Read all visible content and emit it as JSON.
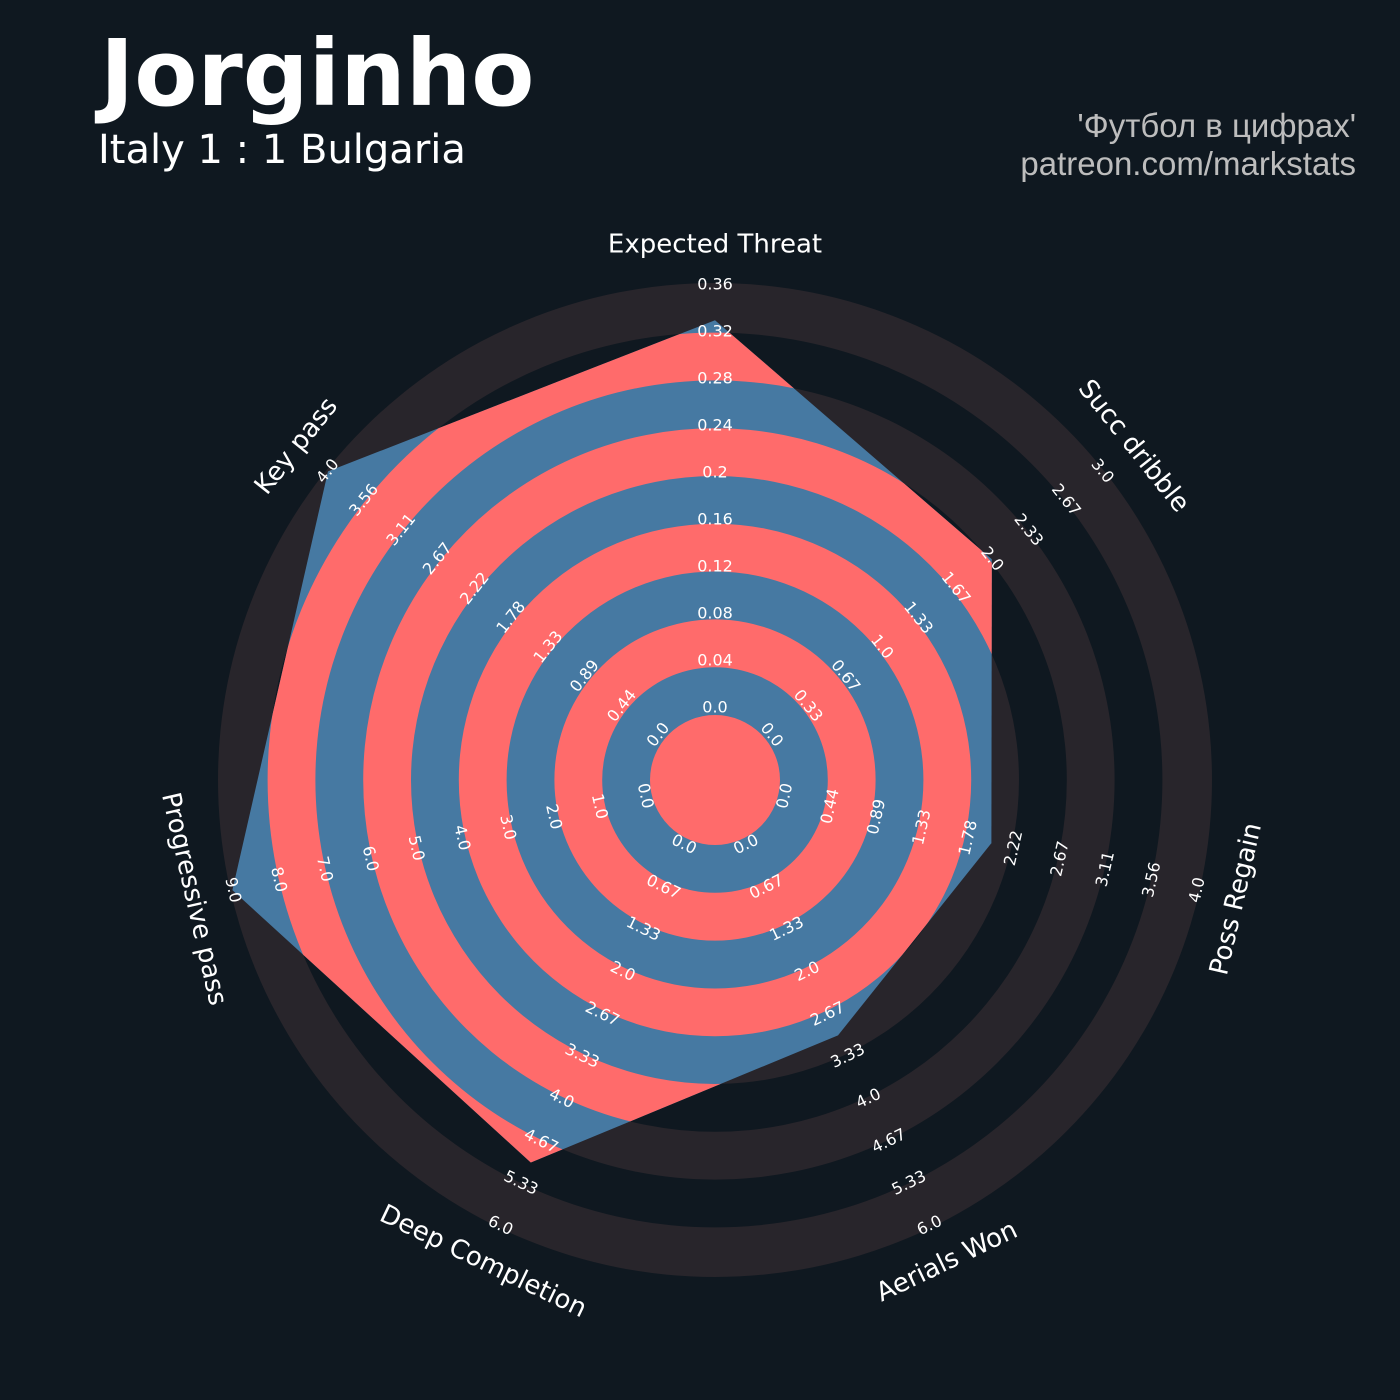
{
  "chart_data": {
    "type": "radar",
    "title": "Jorginho",
    "subtitle": "Italy 1 : 1 Bulgaria",
    "credits": [
      "'Футбол в цифрах'",
      "patreon.com/markstats"
    ],
    "categories": [
      "Expected Threat",
      "Succ dribble",
      "Poss Regain",
      "Aerials Won",
      "Deep Completion",
      "Progressive pass",
      "Key pass"
    ],
    "values": [
      0.33,
      2,
      2,
      3,
      5,
      9,
      4
    ],
    "color": "#4679a2",
    "ring_color": "#ff6b6b",
    "axes": [
      {
        "lim": [
          0,
          0.36
        ],
        "ticks": [
          {
            "value": 0,
            "label": "0.0"
          },
          0.04,
          0.08,
          0.12,
          0.16,
          0.2,
          0.24,
          0.28,
          0.32,
          0.36
        ]
      },
      {
        "lim": [
          0,
          3
        ],
        "ticks": [
          {
            "value": 0,
            "label": "0.0"
          },
          0.33,
          0.67,
          {
            "value": 1,
            "label": "1.0"
          },
          1.33,
          1.67,
          {
            "value": 2,
            "label": "2.0"
          },
          2.33,
          2.67,
          {
            "value": 3,
            "label": "3.0"
          }
        ]
      },
      {
        "lim": [
          0,
          4
        ],
        "ticks": [
          {
            "value": 0,
            "label": "0.0"
          },
          0.44,
          0.89,
          1.33,
          1.78,
          2.22,
          2.67,
          3.11,
          3.56,
          {
            "value": 4,
            "label": "4.0"
          }
        ]
      },
      {
        "lim": [
          0,
          6
        ],
        "ticks": [
          {
            "value": 0,
            "label": "0.0"
          },
          0.67,
          1.33,
          {
            "value": 2,
            "label": "2.0"
          },
          2.67,
          3.33,
          {
            "value": 4,
            "label": "4.0"
          },
          4.67,
          5.33,
          {
            "value": 6,
            "label": "6.0"
          }
        ]
      },
      {
        "lim": [
          0,
          6
        ],
        "ticks": [
          {
            "value": 0,
            "label": "0.0"
          },
          0.67,
          1.33,
          {
            "value": 2,
            "label": "2.0"
          },
          2.67,
          3.33,
          {
            "value": 4,
            "label": "4.0"
          },
          4.67,
          5.33,
          {
            "value": 6,
            "label": "6.0"
          }
        ]
      },
      {
        "lim": [
          0,
          9
        ],
        "ticks": [
          {
            "value": 0,
            "label": "0.0"
          },
          {
            "value": 1,
            "label": "1.0"
          },
          {
            "value": 2,
            "label": "2.0"
          },
          {
            "value": 3,
            "label": "3.0"
          },
          {
            "value": 4,
            "label": "4.0"
          },
          {
            "value": 5,
            "label": "5.0"
          },
          {
            "value": 6,
            "label": "6.0"
          },
          {
            "value": 7,
            "label": "7.0"
          },
          {
            "value": 8,
            "label": "8.0"
          },
          {
            "value": 9,
            "label": "9.0"
          }
        ]
      },
      {
        "lim": [
          0,
          4
        ],
        "ticks": [
          {
            "value": 0,
            "label": "0.0"
          },
          0.44,
          0.89,
          1.33,
          1.78,
          2.22,
          2.67,
          3.11,
          3.56,
          {
            "value": 4,
            "label": "4.0"
          }
        ]
      }
    ]
  }
}
